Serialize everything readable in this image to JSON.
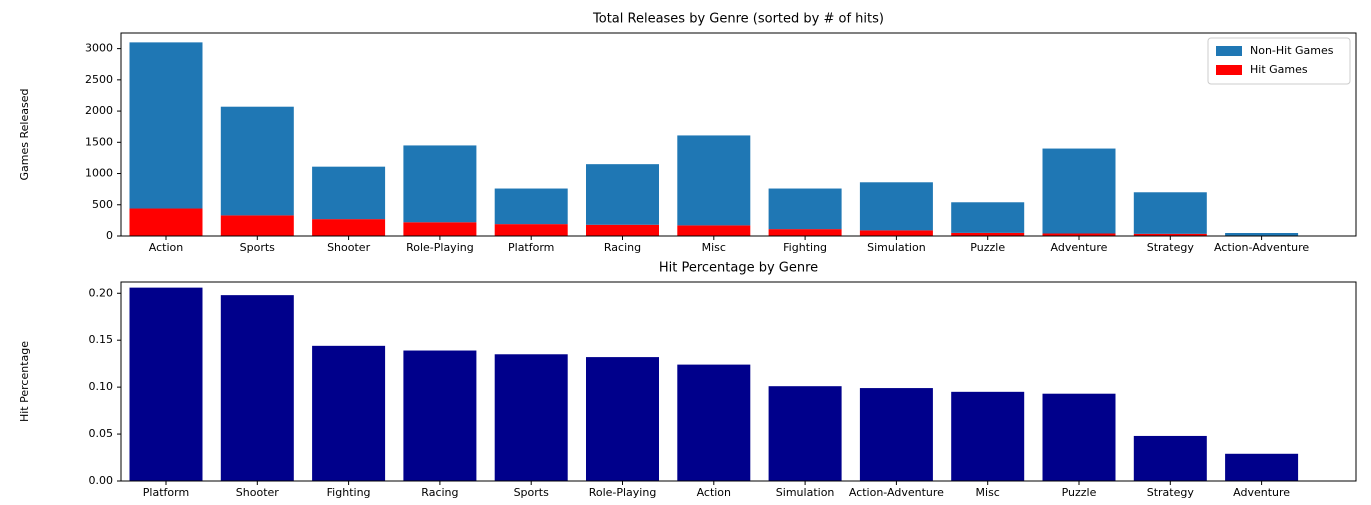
{
  "chart_data": [
    {
      "type": "bar",
      "stacked": true,
      "title": "Total Releases by Genre (sorted by # of hits)",
      "y_label": "Games Released",
      "categories": [
        "Action",
        "Sports",
        "Shooter",
        "Role-Playing",
        "Platform",
        "Racing",
        "Misc",
        "Fighting",
        "Simulation",
        "Puzzle",
        "Adventure",
        "Strategy",
        "Action-Adventure"
      ],
      "series": [
        {
          "name": "Hit Games",
          "color": "#ff0000",
          "values": [
            440,
            330,
            270,
            220,
            190,
            180,
            170,
            110,
            90,
            50,
            40,
            35,
            3
          ]
        },
        {
          "name": "Non-Hit Games",
          "color": "#1f77b4",
          "values": [
            2660,
            1740,
            840,
            1230,
            570,
            970,
            1440,
            650,
            770,
            490,
            1360,
            665,
            45
          ]
        }
      ],
      "ylim": [
        0,
        3250
      ],
      "yticks": [
        0,
        500,
        1000,
        1500,
        2000,
        2500,
        3000
      ],
      "legend": "upper-right"
    },
    {
      "type": "bar",
      "title": "Hit Percentage by Genre",
      "y_label": "Hit Percentage",
      "categories": [
        "Platform",
        "Shooter",
        "Fighting",
        "Racing",
        "Sports",
        "Role-Playing",
        "Action",
        "Simulation",
        "Action-Adventure",
        "Misc",
        "Puzzle",
        "Strategy",
        "Adventure"
      ],
      "values": [
        0.206,
        0.198,
        0.144,
        0.139,
        0.135,
        0.132,
        0.124,
        0.101,
        0.099,
        0.095,
        0.093,
        0.048,
        0.029
      ],
      "color": "#00008b",
      "ylim": [
        0,
        0.212
      ],
      "yticks": [
        {
          "value": 0,
          "label": "0.00"
        },
        {
          "value": 0.05,
          "label": "0.05"
        },
        {
          "value": 0.1,
          "label": "0.10"
        },
        {
          "value": 0.15,
          "label": "0.15"
        },
        {
          "value": 0.2,
          "label": "0.20"
        }
      ]
    }
  ]
}
